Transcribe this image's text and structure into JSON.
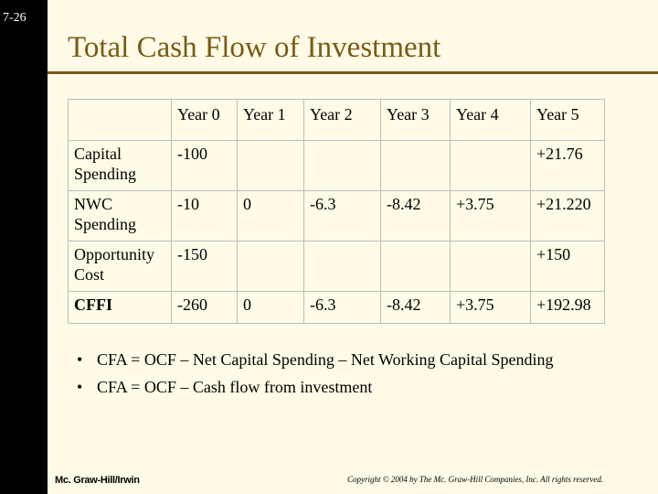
{
  "slide_number": "7-26",
  "title": "Total Cash Flow of Investment",
  "table": {
    "headers": [
      "",
      "Year 0",
      "Year 1",
      "Year 2",
      "Year 3",
      "Year 4",
      "Year 5"
    ],
    "rows": [
      [
        "Capital Spending",
        "-100",
        "",
        "",
        "",
        "",
        "+21.76"
      ],
      [
        "NWC Spending",
        "-10",
        "0",
        "-6.3",
        "-8.42",
        "+3.75",
        "+21.220"
      ],
      [
        "Opportunity Cost",
        "-150",
        "",
        "",
        "",
        "",
        "+150"
      ],
      [
        "CFFI",
        "-260",
        "0",
        "-6.3",
        "-8.42",
        "+3.75",
        "+192.98"
      ]
    ]
  },
  "bullets": [
    "CFA = OCF – Net Capital Spending – Net Working Capital Spending",
    "CFA = OCF – Cash flow from investment"
  ],
  "footer_left": "Mc. Graw-Hill/Irwin",
  "footer_right": "Copyright © 2004 by The Mc. Graw-Hill Companies, Inc. All rights reserved."
}
